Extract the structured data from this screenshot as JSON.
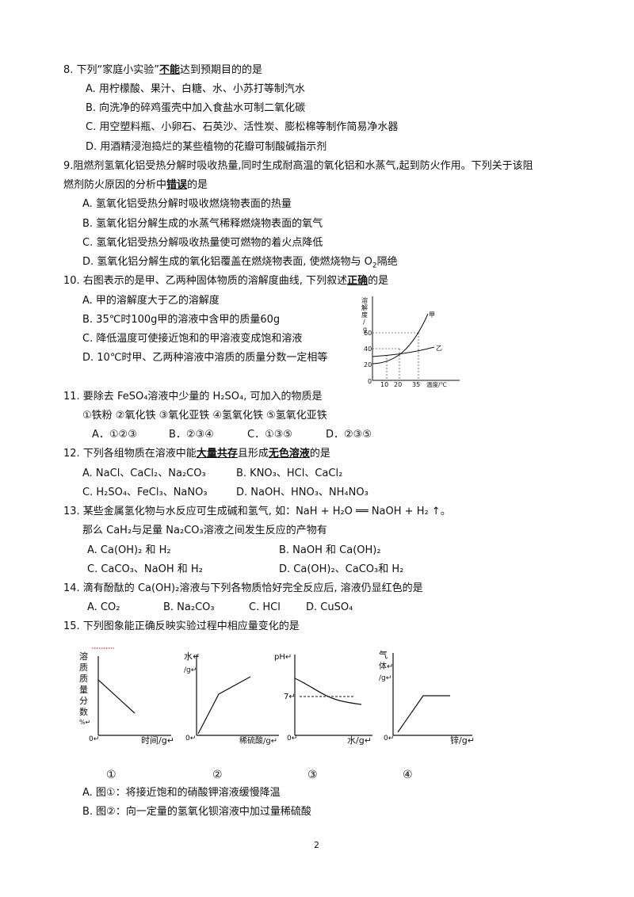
{
  "q8": {
    "stem_pre": "8. 下列“家庭小实验”",
    "stem_em": "不能",
    "stem_post": "达到预期目的的是",
    "A": "A. 用柠檬酸、果汁、白糖、水、小苏打等制汽水",
    "B": "B. 向洗净的碎鸡蛋壳中加入食盐水可制二氧化碳",
    "C": "C.  用空塑料瓶、小卵石、石英沙、活性炭、膨松棉等制作简易净水器",
    "D": "D. 用酒精浸泡捣烂的某些植物的花瓣可制酸碱指示剂"
  },
  "q9": {
    "stem1": "9.阻燃剂氢氧化铝受热分解时吸收热量,同时生成耐高温的氧化铝和水蒸气,起到防火作用。下列关于该阻",
    "stem2_pre": "燃剂防火原因的分析中",
    "stem2_em": "错误",
    "stem2_post": "的是",
    "A": "A. 氢氧化铝受热分解时吸收燃烧物表面的热量",
    "B": "B. 氢氧化铝分解生成的水蒸气稀释燃烧物表面的氧气",
    "C": "C. 氢氧化铝受热分解吸收热量使可燃物的着火点降低",
    "D_pre": "D. 氢氧化铝分解生成的氧化铝覆盖在燃烧物表面, 使燃烧物与 O",
    "D_sub": "2",
    "D_post": "隔绝"
  },
  "q10": {
    "stem_pre": "10. 右图表示的是甲、乙两种固体物质的溶解度曲线, 下列叙述",
    "stem_em": "正确",
    "stem_post": "的是",
    "A": "A. 甲的溶解度大于乙的溶解度",
    "B": "B. 35℃时100g甲的溶液中含甲的质量60g",
    "C": "C. 降低温度可使接近饱和的甲溶液变成饱和溶液",
    "D": "D. 10℃时甲、乙两种溶液中溶质的质量分数一定相等",
    "graph": {
      "ylabel_chars": [
        "溶",
        "解",
        "度",
        "/",
        "g"
      ],
      "y_ticks": [
        "60",
        "40",
        "20"
      ],
      "x_ticks": [
        "10",
        "20",
        "35"
      ],
      "origin": "0",
      "xlabel": "温度/℃",
      "series_a": "甲",
      "series_b": "乙"
    }
  },
  "q11": {
    "stem": "11. 要除去 FeSO₄溶液中少量的 H₂SO₄, 可加入的物质是",
    "items": "①铁粉  ②氧化铁  ③氧化亚铁  ④氢氧化铁  ⑤氢氧化亚铁",
    "A": "A．①②③",
    "B": "B．②③④",
    "C": "C．①③⑤",
    "D": "D．②③⑤"
  },
  "q12": {
    "stem_pre": "12. 下列各组物质在溶液中能",
    "stem_em1": "大量共存",
    "stem_mid": "且形成",
    "stem_em2": "无色溶液",
    "stem_post": "的是",
    "A": "A. NaCl、CaCl₂、Na₂CO₃",
    "B": "B. KNO₃、HCl、CaCl₂",
    "C": "C. H₂SO₄、FeCl₃、NaNO₃",
    "D": "D. NaOH、HNO₃、NH₄NO₃"
  },
  "q13": {
    "stem": "13. 某些金属氢化物与水反应可生成碱和氢气, 如：NaH + H₂O ══ NaOH + H₂ ↑。",
    "stem2": "那么 CaH₂与足量 Na₂CO₃溶液之间发生反应的产物有",
    "A": "A. Ca(OH)₂ 和 H₂",
    "B": "B. NaOH 和 Ca(OH)₂",
    "C": "C. CaCO₃、NaOH 和 H₂",
    "D": "D. Ca(OH)₂、CaCO₃和 H₂"
  },
  "q14": {
    "stem": "14. 滴有酚酞的 Ca(OH)₂溶液与下列各物质恰好完全反应后, 溶液仍显红色的是",
    "A": "A. CO₂",
    "B": "B. Na₂CO₃",
    "C": "C. HCl",
    "D": "D. CuSO₄"
  },
  "q15": {
    "stem": "15. 下列图象能正确反映实验过程中相应量变化的是",
    "g1": {
      "ylabel": [
        "溶",
        "质",
        "质",
        "量",
        "分",
        "数",
        "%↵"
      ],
      "xlabel": "时间/g↵",
      "origin": "0↵",
      "num": "①"
    },
    "g2": {
      "ylabel": [
        "水↵",
        "/g↵"
      ],
      "xlabel": "稀硫酸/g↵",
      "origin": "0↵",
      "num": "②"
    },
    "g3": {
      "ylabel": [
        "pH↵"
      ],
      "y7": "7↵",
      "xlabel": "水/g↵",
      "origin": "0↵",
      "num": "③"
    },
    "g4": {
      "ylabel": [
        "气",
        "体↵",
        "/g↵"
      ],
      "xlabel": "锌/g↵",
      "origin": "0↵",
      "num": "④"
    },
    "A": "A. 图①：将接近饱和的硝酸钾溶液缓慢降温",
    "B": "B. 图②：向一定量的氢氧化钡溶液中加过量稀硫酸"
  },
  "footer": {
    "page": "2"
  }
}
